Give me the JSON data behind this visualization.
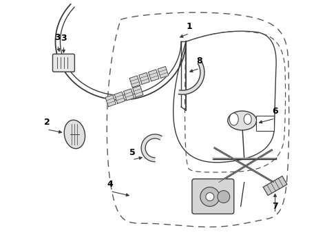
{
  "bg_color": "#ffffff",
  "line_color": "#3a3a3a",
  "dashed_color": "#555555",
  "fig_width": 4.89,
  "fig_height": 3.6,
  "dpi": 100
}
